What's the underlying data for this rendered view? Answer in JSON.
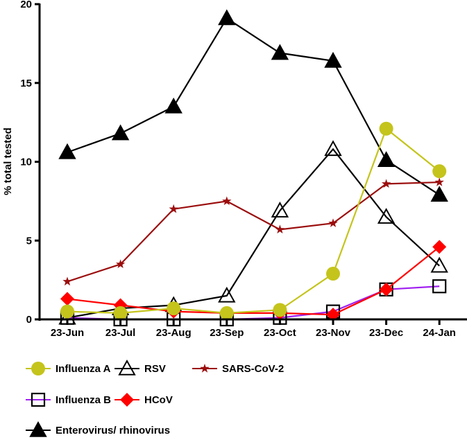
{
  "chart_data": {
    "type": "line",
    "title": "",
    "xlabel": "",
    "ylabel": "% total tested",
    "ylim": [
      0,
      20
    ],
    "yticks": [
      0,
      5,
      10,
      15,
      20
    ],
    "categories": [
      "23-Jun",
      "23-Jul",
      "23-Aug",
      "23-Sep",
      "23-Oct",
      "23-Nov",
      "23-Dec",
      "24-Jan"
    ],
    "grid": false,
    "legend_position": "bottom",
    "series": [
      {
        "name": "Enterovirus/ rhinovirus",
        "marker": "triangle-filled",
        "color": "#000000",
        "line_color": "#000000",
        "values": [
          10.6,
          11.8,
          13.5,
          19.1,
          16.9,
          16.4,
          10.1,
          7.9
        ]
      },
      {
        "name": "RSV",
        "marker": "triangle-open",
        "color": "#000000",
        "line_color": "#000000",
        "values": [
          0.1,
          0.7,
          0.9,
          1.5,
          6.9,
          10.8,
          6.5,
          3.4
        ]
      },
      {
        "name": "SARS-CoV-2",
        "marker": "star",
        "color": "#9b0d0d",
        "line_color": "#9b0d0d",
        "values": [
          2.4,
          3.5,
          7.0,
          7.5,
          5.7,
          6.1,
          8.6,
          8.7
        ]
      },
      {
        "name": "Influenza B",
        "marker": "square-open",
        "color": "#000000",
        "line_color": "#a020f0",
        "values": [
          0.1,
          0.0,
          0.0,
          0.0,
          0.1,
          0.5,
          1.9,
          2.1
        ]
      },
      {
        "name": "HCoV",
        "marker": "diamond",
        "color": "#ff0000",
        "line_color": "#ff0000",
        "values": [
          1.3,
          0.9,
          0.5,
          0.4,
          0.4,
          0.3,
          1.9,
          4.6
        ]
      },
      {
        "name": "Influenza A",
        "marker": "circle",
        "color": "#c4c41c",
        "line_color": "#c4c41c",
        "values": [
          0.5,
          0.4,
          0.7,
          0.4,
          0.6,
          2.9,
          12.1,
          9.4
        ]
      }
    ],
    "legend_order": [
      "Influenza A",
      "RSV",
      "SARS-CoV-2",
      "Influenza B",
      "HCoV",
      "Enterovirus/ rhinovirus"
    ]
  }
}
